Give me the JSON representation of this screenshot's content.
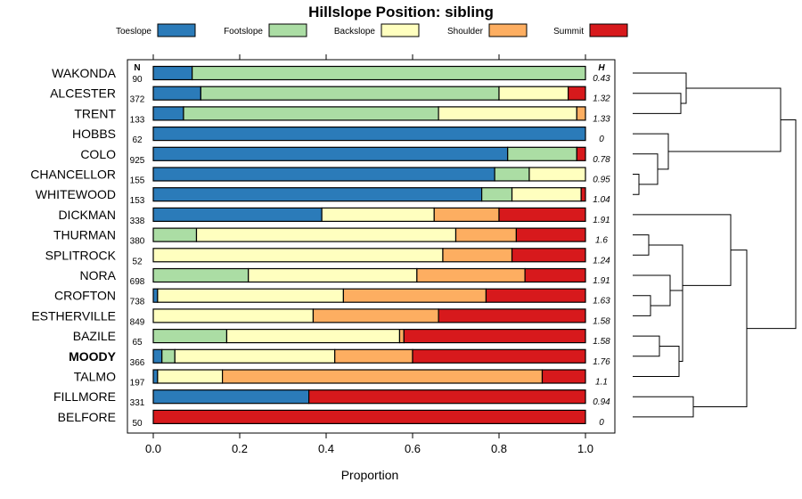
{
  "chart_data": {
    "type": "bar",
    "orientation": "horizontal-stacked",
    "title": "Hillslope Position: sibling",
    "xlabel": "Proportion",
    "ylabel": "",
    "xlim": [
      0,
      1
    ],
    "xticks": [
      0,
      0.2,
      0.4,
      0.6,
      0.8,
      1
    ],
    "xtick_labels": [
      "0.0",
      "0.2",
      "0.4",
      "0.6",
      "0.8",
      "1.0"
    ],
    "n_header": "N",
    "h_header": "H",
    "legend": [
      {
        "label": "Toeslope",
        "color": "#2b7bb9"
      },
      {
        "label": "Footslope",
        "color": "#abdda4"
      },
      {
        "label": "Backslope",
        "color": "#ffffbf"
      },
      {
        "label": "Shoulder",
        "color": "#fdae61"
      },
      {
        "label": "Summit",
        "color": "#d7191c"
      }
    ],
    "categories": [
      "WAKONDA",
      "ALCESTER",
      "TRENT",
      "HOBBS",
      "COLO",
      "CHANCELLOR",
      "WHITEWOOD",
      "DICKMAN",
      "THURMAN",
      "SPLITROCK",
      "NORA",
      "CROFTON",
      "ESTHERVILLE",
      "BAZILE",
      "MOODY",
      "TALMO",
      "FILLMORE",
      "BELFORE"
    ],
    "highlight": "MOODY",
    "n": [
      "90",
      "372",
      "133",
      "62",
      "925",
      "155",
      "153",
      "338",
      "380",
      "52",
      "698",
      "738",
      "849",
      "65",
      "366",
      "197",
      "331",
      "50"
    ],
    "h": [
      "0.43",
      "1.32",
      "1.33",
      "0",
      "0.78",
      "0.95",
      "1.04",
      "1.91",
      "1.6",
      "1.24",
      "1.91",
      "1.63",
      "1.58",
      "1.58",
      "1.76",
      "1.1",
      "0.94",
      "0"
    ],
    "proportions": [
      [
        0.09,
        0.91,
        0.0,
        0.0,
        0.0
      ],
      [
        0.11,
        0.69,
        0.16,
        0.0,
        0.04
      ],
      [
        0.07,
        0.59,
        0.32,
        0.02,
        0.0
      ],
      [
        1.0,
        0.0,
        0.0,
        0.0,
        0.0
      ],
      [
        0.82,
        0.16,
        0.0,
        0.0,
        0.02
      ],
      [
        0.79,
        0.08,
        0.13,
        0.0,
        0.0
      ],
      [
        0.76,
        0.07,
        0.16,
        0.0,
        0.01
      ],
      [
        0.39,
        0.0,
        0.26,
        0.15,
        0.2
      ],
      [
        0.0,
        0.1,
        0.6,
        0.14,
        0.16
      ],
      [
        0.0,
        0.0,
        0.67,
        0.16,
        0.17
      ],
      [
        0.0,
        0.22,
        0.39,
        0.25,
        0.14
      ],
      [
        0.01,
        0.0,
        0.43,
        0.33,
        0.23
      ],
      [
        0.0,
        0.0,
        0.37,
        0.29,
        0.34
      ],
      [
        0.0,
        0.17,
        0.4,
        0.01,
        0.42
      ],
      [
        0.02,
        0.03,
        0.37,
        0.18,
        0.4
      ],
      [
        0.01,
        0.0,
        0.15,
        0.74,
        0.1
      ],
      [
        0.36,
        0.0,
        0.0,
        0.0,
        0.64
      ],
      [
        0.0,
        0.0,
        0.0,
        0.0,
        1.0
      ]
    ],
    "dendrogram": "hierarchical clustering of soil series by hillslope position"
  }
}
